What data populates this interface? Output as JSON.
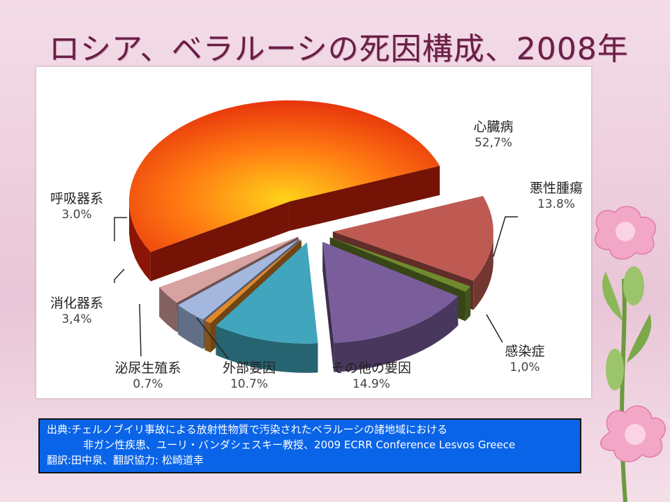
{
  "title": "ロシア、ベラルーシの死因構成、2008年",
  "chart_data": {
    "type": "pie",
    "title": "",
    "style": "3d-exploded",
    "slices": [
      {
        "label": "心臓病",
        "value_text": "52,7%",
        "value": 52.7,
        "color": "#e8250c"
      },
      {
        "label": "悪性腫瘍",
        "value_text": "13.8%",
        "value": 13.8,
        "color": "#bf5a52"
      },
      {
        "label": "感染症",
        "value_text": "1,0%",
        "value": 1.0,
        "color": "#6f8a2e"
      },
      {
        "label": "その他の要因",
        "value_text": "14.9%",
        "value": 14.9,
        "color": "#7a5e9c"
      },
      {
        "label": "外部要因",
        "value_text": "10.7%",
        "value": 10.7,
        "color": "#41a6bd"
      },
      {
        "label": "泌尿生殖系",
        "value_text": "0.7%",
        "value": 0.7,
        "color": "#e0892a"
      },
      {
        "label": "消化器系",
        "value_text": "3,4%",
        "value": 3.4,
        "color": "#a4b8df"
      },
      {
        "label": "呼吸器系",
        "value_text": "3.0%",
        "value": 3.0,
        "color": "#d8a2a0"
      }
    ]
  },
  "source": {
    "line1": "出典:チェルノブイリ事故による放射性物質で汚染されたベラルーシの諸地域における",
    "line2": "非ガン性疾患、ユーリ・バンダシェスキー教授、2009 ECRR Conference Lesvos Greece",
    "line3": "翻訳:田中泉、翻訳協力: 松崎道幸"
  }
}
